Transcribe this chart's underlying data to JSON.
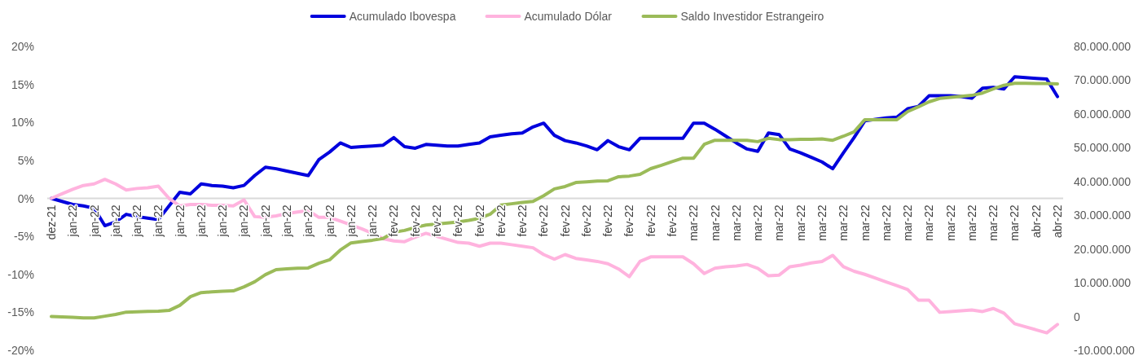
{
  "chart_data": {
    "type": "line",
    "categories": [
      "dez-21",
      null,
      "jan-22",
      null,
      "jan-22",
      null,
      "jan-22",
      null,
      "jan-22",
      null,
      "jan-22",
      null,
      "jan-22",
      null,
      "jan-22",
      null,
      "jan-22",
      null,
      "jan-22",
      null,
      "jan-22",
      null,
      "jan-22",
      null,
      "jan-22",
      null,
      "jan-22",
      null,
      "jan-22",
      null,
      "jan-22",
      null,
      "fev-22",
      null,
      "fev-22",
      null,
      "fev-22",
      null,
      "fev-22",
      null,
      "fev-22",
      null,
      "fev-22",
      null,
      "fev-22",
      null,
      "fev-22",
      null,
      "fev-22",
      null,
      "fev-22",
      null,
      "fev-22",
      null,
      "fev-22",
      null,
      "fev-22",
      null,
      "fev-22",
      null,
      "mar-22",
      null,
      "mar-22",
      null,
      "mar-22",
      null,
      "mar-22",
      null,
      "mar-22",
      null,
      "mar-22",
      null,
      "mar-22",
      null,
      "mar-22",
      null,
      "mar-22",
      null,
      "mar-22",
      null,
      "mar-22",
      null,
      "mar-22",
      null,
      "mar-22",
      null,
      "mar-22",
      null,
      "mar-22",
      null,
      "mar-22",
      null,
      "abr-22",
      null,
      "abr-22"
    ],
    "series": [
      {
        "name": "Acumulado Ibovespa",
        "color": "#0000dd",
        "values": [
          0,
          -0.4,
          -0.8,
          -1.0,
          -1.3,
          -3.6,
          -3.1,
          -2.1,
          -2.4,
          -2.6,
          -2.8,
          -1.0,
          0.8,
          0.6,
          1.9,
          1.7,
          1.6,
          1.4,
          1.7,
          3.0,
          4.1,
          3.9,
          3.6,
          3.3,
          3.0,
          5.1,
          6.1,
          7.3,
          6.7,
          6.8,
          6.9,
          7.0,
          8.0,
          6.8,
          6.6,
          7.1,
          7.0,
          6.9,
          6.9,
          7.1,
          7.3,
          8.1,
          8.3,
          8.5,
          8.6,
          9.4,
          9.9,
          8.3,
          7.6,
          7.3,
          6.9,
          6.4,
          7.6,
          6.8,
          6.4,
          7.9,
          7.9,
          7.9,
          7.9,
          7.9,
          9.9,
          9.9,
          9.1,
          8.2,
          7.3,
          6.5,
          6.2,
          8.6,
          8.4,
          6.5,
          6.0,
          5.4,
          4.8,
          3.9,
          6.0,
          8.0,
          10.2,
          10.4,
          10.6,
          10.7,
          11.8,
          12.1,
          13.5,
          13.5,
          13.5,
          13.4,
          13.2,
          14.5,
          14.6,
          14.4,
          16.0,
          15.9,
          15.8,
          15.7,
          13.4
        ]
      },
      {
        "name": "Acumulado Dólar",
        "color": "#ffb3de",
        "values": [
          0,
          0.6,
          1.2,
          1.7,
          1.9,
          2.5,
          1.9,
          1.1,
          1.3,
          1.4,
          1.6,
          0,
          -1.0,
          -0.8,
          -0.8,
          -0.9,
          -0.9,
          -1.0,
          -0.2,
          -2.4,
          -2.5,
          -2.3,
          -2.0,
          -1.8,
          -1.6,
          -2.5,
          -2.5,
          -3.0,
          -3.5,
          -4.0,
          -4.6,
          -5.3,
          -5.6,
          -5.7,
          -5.1,
          -4.6,
          -5.0,
          -5.4,
          -5.8,
          -5.9,
          -6.3,
          -5.9,
          -5.9,
          -6.1,
          -6.3,
          -6.5,
          -7.4,
          -8.0,
          -7.4,
          -7.9,
          -8.1,
          -8.3,
          -8.6,
          -9.3,
          -10.3,
          -8.3,
          -7.7,
          -7.7,
          -7.7,
          -7.7,
          -8.6,
          -9.9,
          -9.2,
          -9.0,
          -8.9,
          -8.7,
          -9.2,
          -10.2,
          -10.1,
          -9.0,
          -8.8,
          -8.5,
          -8.3,
          -7.5,
          -9.0,
          -9.6,
          -10.0,
          -10.5,
          -11.0,
          -11.5,
          -12.0,
          -13.4,
          -13.4,
          -15.0,
          -14.9,
          -14.8,
          -14.7,
          -14.9,
          -14.5,
          -15.1,
          -16.5,
          -16.9,
          -17.3,
          -17.7,
          -16.6
        ]
      },
      {
        "name": "Saldo Investidor Estrangeiro",
        "color": "#9bbb59",
        "axis": "y2",
        "values": [
          0,
          -100000,
          -200000,
          -400000,
          -400000,
          100000,
          600000,
          1300000,
          1400000,
          1500000,
          1600000,
          1800000,
          3300000,
          5900000,
          7100000,
          7300000,
          7500000,
          7600000,
          8800000,
          10300000,
          12400000,
          13900000,
          14100000,
          14300000,
          14400000,
          15800000,
          16800000,
          19700000,
          21800000,
          22200000,
          22600000,
          23100000,
          25000000,
          25500000,
          26400000,
          27100000,
          27400000,
          27700000,
          28000000,
          28500000,
          29100000,
          30300000,
          33000000,
          33400000,
          33800000,
          34100000,
          35800000,
          37800000,
          38500000,
          39700000,
          39900000,
          40100000,
          40200000,
          41400000,
          41600000,
          42100000,
          43800000,
          44800000,
          45900000,
          46900000,
          46900000,
          51000000,
          52200000,
          52200000,
          52200000,
          52200000,
          51800000,
          52800000,
          52400000,
          52400000,
          52500000,
          52500000,
          52600000,
          52200000,
          53400000,
          54700000,
          58300000,
          58300000,
          58300000,
          58300000,
          60700000,
          62100000,
          63600000,
          64600000,
          64900000,
          65200000,
          65500000,
          66200000,
          67400000,
          68500000,
          69100000,
          69100000,
          69000000,
          69000000,
          68900000
        ]
      }
    ],
    "ylim": [
      -20,
      20
    ],
    "yticks": [
      {
        "value": -20,
        "label": "-20%"
      },
      {
        "value": -15,
        "label": "-15%"
      },
      {
        "value": -10,
        "label": "-10%"
      },
      {
        "value": -5,
        "label": "-5%"
      },
      {
        "value": 0,
        "label": "0%"
      },
      {
        "value": 5,
        "label": "5%"
      },
      {
        "value": 10,
        "label": "10%"
      },
      {
        "value": 15,
        "label": "15%"
      },
      {
        "value": 20,
        "label": "20%"
      }
    ],
    "y2lim": [
      -10000000,
      80000000
    ],
    "y2ticks": [
      {
        "value": -10000000,
        "label": "-10.000.000"
      },
      0,
      {
        "value": 10000000,
        "label": "10.000.000"
      },
      {
        "value": 20000000,
        "label": "20.000.000"
      },
      {
        "value": 30000000,
        "label": "30.000.000"
      },
      {
        "value": 40000000,
        "label": "40.000.000"
      },
      {
        "value": 50000000,
        "label": "50.000.000"
      },
      {
        "value": 60000000,
        "label": "60.000.000"
      },
      {
        "value": 70000000,
        "label": "70.000.000"
      },
      {
        "value": 80000000,
        "label": "80.000.000"
      }
    ],
    "legend": "top",
    "marker": "none",
    "line_style": "solid"
  }
}
